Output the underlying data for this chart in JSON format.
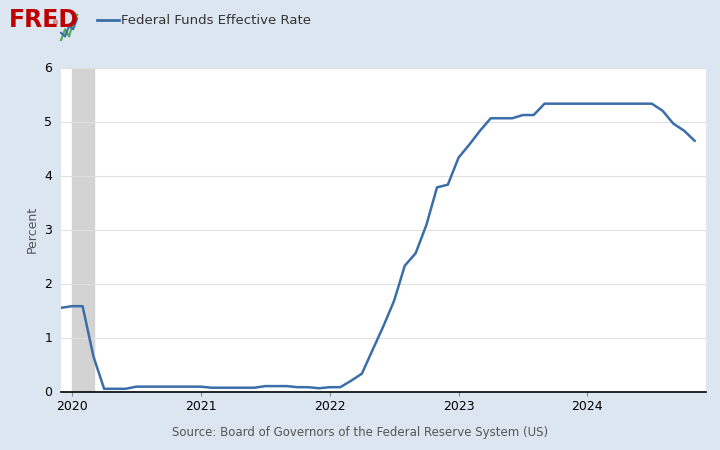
{
  "title": "Federal Funds Effective Rate",
  "ylabel": "Percent",
  "source": "Source: Board of Governors of the Federal Reserve System (US)",
  "background_color": "#dce6f0",
  "plot_bg_color": "#ffffff",
  "line_color": "#3b6ea8",
  "line_width": 1.8,
  "ylim": [
    0,
    6
  ],
  "yticks": [
    0,
    1,
    2,
    3,
    4,
    5,
    6
  ],
  "recession_start": 2020.0,
  "recession_end": 2020.17,
  "recession_color": "#d3d3d3",
  "dates": [
    2019.917,
    2020.0,
    2020.083,
    2020.167,
    2020.25,
    2020.333,
    2020.417,
    2020.5,
    2020.583,
    2020.667,
    2020.75,
    2020.833,
    2020.917,
    2021.0,
    2021.083,
    2021.167,
    2021.25,
    2021.333,
    2021.417,
    2021.5,
    2021.583,
    2021.667,
    2021.75,
    2021.833,
    2021.917,
    2022.0,
    2022.083,
    2022.167,
    2022.25,
    2022.333,
    2022.417,
    2022.5,
    2022.583,
    2022.667,
    2022.75,
    2022.833,
    2022.917,
    2023.0,
    2023.083,
    2023.167,
    2023.25,
    2023.333,
    2023.417,
    2023.5,
    2023.583,
    2023.667,
    2023.75,
    2023.833,
    2023.917,
    2024.0,
    2024.083,
    2024.167,
    2024.25,
    2024.333,
    2024.417,
    2024.5,
    2024.583,
    2024.667,
    2024.75,
    2024.833
  ],
  "values": [
    1.55,
    1.58,
    1.58,
    0.65,
    0.05,
    0.05,
    0.05,
    0.09,
    0.09,
    0.09,
    0.09,
    0.09,
    0.09,
    0.09,
    0.07,
    0.07,
    0.07,
    0.07,
    0.07,
    0.1,
    0.1,
    0.1,
    0.08,
    0.08,
    0.06,
    0.08,
    0.08,
    0.2,
    0.33,
    0.77,
    1.21,
    1.68,
    2.33,
    2.56,
    3.08,
    3.78,
    3.83,
    4.33,
    4.57,
    4.83,
    5.06,
    5.06,
    5.06,
    5.12,
    5.12,
    5.33,
    5.33,
    5.33,
    5.33,
    5.33,
    5.33,
    5.33,
    5.33,
    5.33,
    5.33,
    5.33,
    5.2,
    4.96,
    4.83,
    4.64
  ],
  "xlim_start": 2019.917,
  "xlim_end": 2024.917,
  "xtick_positions": [
    2020.0,
    2021.0,
    2022.0,
    2023.0,
    2024.0
  ],
  "xtick_labels": [
    "2020",
    "2021",
    "2022",
    "2023",
    "2024"
  ],
  "fred_logo_color": "#c00000",
  "legend_line_color": "#3b6ea8",
  "header_bg_color": "#dce6f0",
  "grid_color": "#e0e0e0"
}
